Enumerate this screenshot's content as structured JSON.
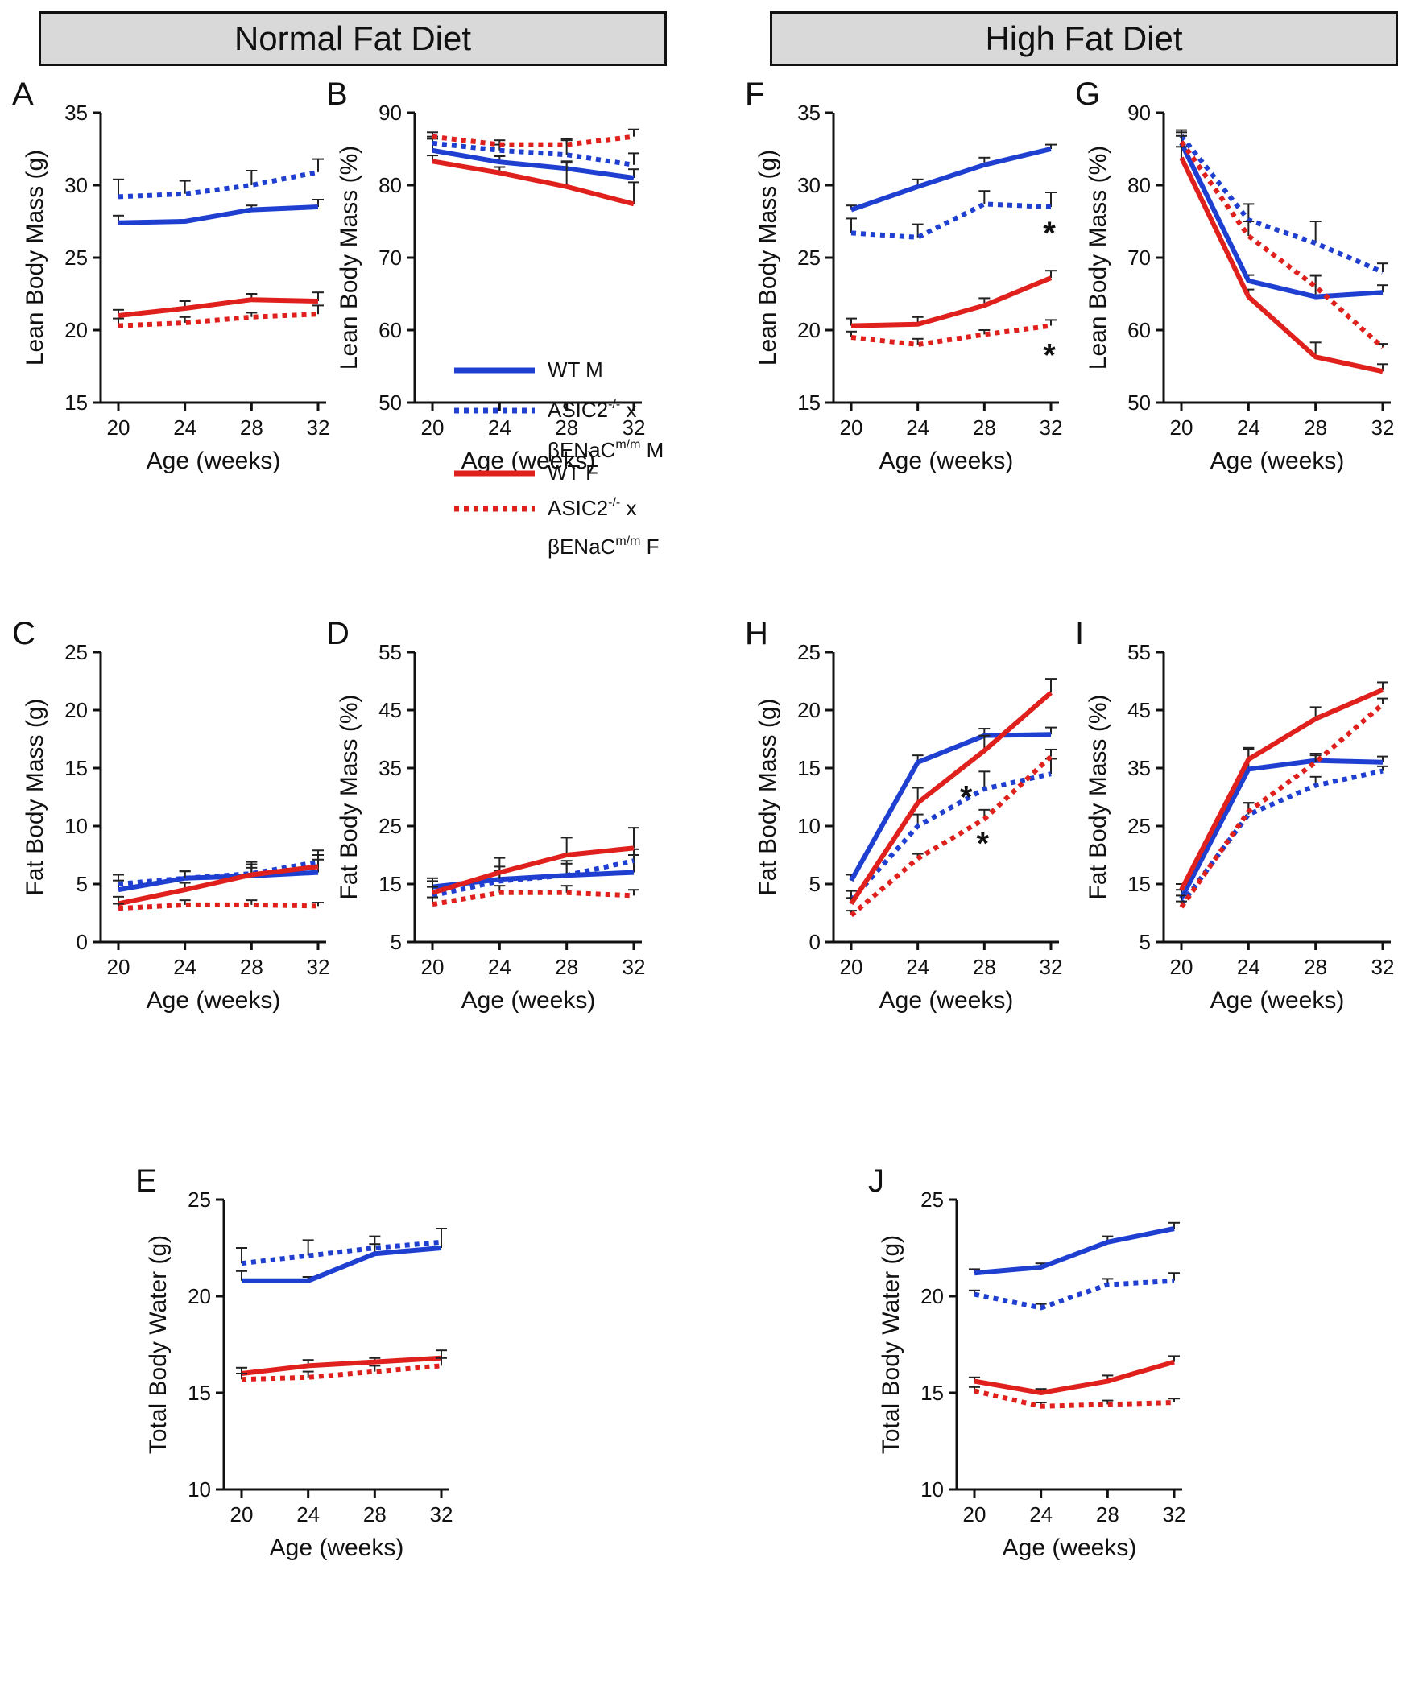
{
  "headers": {
    "normal": "Normal Fat Diet",
    "high": "High Fat Diet"
  },
  "colors": {
    "male": "#1f3fd1",
    "female": "#e0201c",
    "axis": "#111111"
  },
  "legend": {
    "wt_m": "WT M",
    "asic_m_line1_base": "ASIC2",
    "asic_m_line1_sup": "-/-",
    "asic_m_line1_tail": " x",
    "asic_m_line2_base": "βENaC",
    "asic_m_line2_sup": "m/m",
    "asic_m_line2_tail": " M",
    "wt_f": "WT F",
    "asic_f_line1_base": "ASIC2",
    "asic_f_line1_sup": "-/-",
    "asic_f_line1_tail": " x",
    "asic_f_line2_base": "βENaC",
    "asic_f_line2_sup": "m/m",
    "asic_f_line2_tail": " F"
  },
  "chart_data": [
    {
      "id": "A",
      "type": "line",
      "title": "",
      "xlabel": "Age (weeks)",
      "ylabel": "Lean Body Mass (g)",
      "x": [
        20,
        24,
        28,
        32
      ],
      "xticks": [
        "20",
        "24",
        "28",
        "32"
      ],
      "ylim": [
        15,
        35
      ],
      "yticks": [
        "15",
        "20",
        "25",
        "30",
        "35"
      ],
      "annotations": [],
      "series": [
        {
          "name": "WT M",
          "style": "solid",
          "color": "male",
          "values": [
            27.4,
            27.5,
            28.3,
            28.5
          ],
          "errors": [
            0.5,
            0.1,
            0.3,
            0.5
          ]
        },
        {
          "name": "ASIC2-/- x βENaCm/m M",
          "style": "dotted",
          "color": "male",
          "values": [
            29.2,
            29.4,
            30.0,
            30.9
          ],
          "errors": [
            1.2,
            0.9,
            1.0,
            0.9
          ]
        },
        {
          "name": "WT F",
          "style": "solid",
          "color": "female",
          "values": [
            21.0,
            21.5,
            22.1,
            22.0
          ],
          "errors": [
            0.4,
            0.5,
            0.4,
            0.6
          ]
        },
        {
          "name": "ASIC2-/- x βENaCm/m F",
          "style": "dotted",
          "color": "female",
          "values": [
            20.3,
            20.5,
            20.9,
            21.1
          ],
          "errors": [
            0.5,
            0.4,
            0.3,
            0.6
          ]
        }
      ]
    },
    {
      "id": "B",
      "type": "line",
      "title": "",
      "xlabel": "Age (weeks)",
      "ylabel": "Lean Body Mass (%)",
      "x": [
        20,
        24,
        28,
        32
      ],
      "xticks": [
        "20",
        "24",
        "28",
        "32"
      ],
      "ylim": [
        50,
        90
      ],
      "yticks": [
        "50",
        "60",
        "70",
        "80",
        "90"
      ],
      "annotations": [],
      "series": [
        {
          "name": "WT M",
          "style": "solid",
          "color": "male",
          "values": [
            84.8,
            83.2,
            82.3,
            81.0
          ],
          "errors": [
            1.6,
            0.8,
            0.8,
            1.2
          ]
        },
        {
          "name": "ASIC2-/- x βENaCm/m M",
          "style": "dotted",
          "color": "male",
          "values": [
            85.8,
            84.8,
            84.2,
            82.8
          ],
          "errors": [
            0.9,
            0.8,
            2.0,
            1.6
          ]
        },
        {
          "name": "WT F",
          "style": "solid",
          "color": "female",
          "values": [
            83.3,
            81.7,
            79.8,
            77.4
          ],
          "errors": [
            0.8,
            0.8,
            3.5,
            3.0
          ]
        },
        {
          "name": "ASIC2-/- x βENaCm/m F",
          "style": "dotted",
          "color": "female",
          "values": [
            86.7,
            85.6,
            85.6,
            86.7
          ],
          "errors": [
            0.6,
            0.6,
            0.8,
            1.0
          ]
        }
      ]
    },
    {
      "id": "C",
      "type": "line",
      "title": "",
      "xlabel": "Age (weeks)",
      "ylabel": "Fat Body Mass (g)",
      "x": [
        20,
        24,
        28,
        32
      ],
      "xticks": [
        "20",
        "24",
        "28",
        "32"
      ],
      "ylim": [
        0,
        25
      ],
      "yticks": [
        "0",
        "5",
        "10",
        "15",
        "20",
        "25"
      ],
      "annotations": [],
      "series": [
        {
          "name": "WT M",
          "style": "solid",
          "color": "male",
          "values": [
            4.5,
            5.5,
            5.7,
            6.0
          ],
          "errors": [
            0.8,
            0.6,
            1.0,
            1.5
          ]
        },
        {
          "name": "ASIC2-/- x βENaCm/m M",
          "style": "dotted",
          "color": "male",
          "values": [
            5.0,
            5.5,
            5.9,
            6.9
          ],
          "errors": [
            0.8,
            0.6,
            1.0,
            1.0
          ]
        },
        {
          "name": "WT F",
          "style": "solid",
          "color": "female",
          "values": [
            3.3,
            4.5,
            5.8,
            6.5
          ],
          "errors": [
            0.6,
            0.6,
            0.6,
            0.6
          ]
        },
        {
          "name": "ASIC2-/- x βENaCm/m F",
          "style": "dotted",
          "color": "female",
          "values": [
            2.9,
            3.2,
            3.2,
            3.1
          ],
          "errors": [
            0.4,
            0.4,
            0.4,
            0.3
          ]
        }
      ]
    },
    {
      "id": "D",
      "type": "line",
      "title": "",
      "xlabel": "Age (weeks)",
      "ylabel": "Fat Body Mass (%)",
      "x": [
        20,
        24,
        28,
        32
      ],
      "xticks": [
        "20",
        "24",
        "28",
        "32"
      ],
      "ylim": [
        5,
        55
      ],
      "yticks": [
        "5",
        "15",
        "25",
        "35",
        "45",
        "55"
      ],
      "annotations": [],
      "series": [
        {
          "name": "WT M",
          "style": "solid",
          "color": "male",
          "values": [
            14.5,
            15.8,
            16.5,
            17.0
          ],
          "errors": [
            1.5,
            1.5,
            2.0,
            3.0
          ]
        },
        {
          "name": "ASIC2-/- x βENaCm/m M",
          "style": "dotted",
          "color": "male",
          "values": [
            13.0,
            15.5,
            16.5,
            19.0
          ],
          "errors": [
            1.5,
            2.5,
            2.5,
            2.0
          ]
        },
        {
          "name": "WT F",
          "style": "solid",
          "color": "female",
          "values": [
            13.5,
            17.0,
            20.0,
            21.2
          ],
          "errors": [
            2.0,
            2.5,
            3.0,
            3.5
          ]
        },
        {
          "name": "ASIC2-/- x βENaCm/m F",
          "style": "dotted",
          "color": "female",
          "values": [
            11.5,
            13.5,
            13.5,
            13.0
          ],
          "errors": [
            1.2,
            1.2,
            1.2,
            1.0
          ]
        }
      ]
    },
    {
      "id": "E",
      "type": "line",
      "title": "",
      "xlabel": "Age (weeks)",
      "ylabel": "Total Body Water (g)",
      "x": [
        20,
        24,
        28,
        32
      ],
      "xticks": [
        "20",
        "24",
        "28",
        "32"
      ],
      "ylim": [
        10,
        25
      ],
      "yticks": [
        "10",
        "15",
        "20",
        "25"
      ],
      "annotations": [],
      "series": [
        {
          "name": "WT M",
          "style": "solid",
          "color": "male",
          "values": [
            20.8,
            20.8,
            22.2,
            22.5
          ],
          "errors": [
            0.5,
            0.2,
            0.5,
            1.0
          ]
        },
        {
          "name": "ASIC2-/- x βENaCm/m M",
          "style": "dotted",
          "color": "male",
          "values": [
            21.7,
            22.1,
            22.5,
            22.8
          ],
          "errors": [
            0.8,
            0.8,
            0.6,
            0.7
          ]
        },
        {
          "name": "WT F",
          "style": "solid",
          "color": "female",
          "values": [
            16.0,
            16.4,
            16.6,
            16.8
          ],
          "errors": [
            0.3,
            0.3,
            0.2,
            0.4
          ]
        },
        {
          "name": "ASIC2-/- x βENaCm/m F",
          "style": "dotted",
          "color": "female",
          "values": [
            15.7,
            15.8,
            16.1,
            16.4
          ],
          "errors": [
            0.3,
            0.3,
            0.3,
            0.4
          ]
        }
      ]
    },
    {
      "id": "F",
      "type": "line",
      "title": "",
      "xlabel": "Age (weeks)",
      "ylabel": "Lean Body Mass (g)",
      "x": [
        20,
        24,
        28,
        32
      ],
      "xticks": [
        "20",
        "24",
        "28",
        "32"
      ],
      "ylim": [
        15,
        35
      ],
      "yticks": [
        "15",
        "20",
        "25",
        "30",
        "35"
      ],
      "annotations": [
        {
          "label": "*",
          "x": 32,
          "y": 26.6
        },
        {
          "label": "*",
          "x": 32,
          "y": 18.2
        }
      ],
      "series": [
        {
          "name": "WT M",
          "style": "solid",
          "color": "male",
          "values": [
            28.3,
            29.9,
            31.4,
            32.5
          ],
          "errors": [
            0.3,
            0.5,
            0.5,
            0.3
          ]
        },
        {
          "name": "ASIC2-/- x βENaCm/m M",
          "style": "dotted",
          "color": "male",
          "values": [
            26.7,
            26.4,
            28.7,
            28.5
          ],
          "errors": [
            1.0,
            0.9,
            0.9,
            1.0
          ]
        },
        {
          "name": "WT F",
          "style": "solid",
          "color": "female",
          "values": [
            20.3,
            20.4,
            21.7,
            23.6
          ],
          "errors": [
            0.5,
            0.5,
            0.5,
            0.5
          ]
        },
        {
          "name": "ASIC2-/- x βENaCm/m F",
          "style": "dotted",
          "color": "female",
          "values": [
            19.5,
            19.0,
            19.7,
            20.3
          ],
          "errors": [
            0.4,
            0.4,
            0.3,
            0.4
          ]
        }
      ]
    },
    {
      "id": "G",
      "type": "line",
      "title": "",
      "xlabel": "Age (weeks)",
      "ylabel": "Lean Body Mass (%)",
      "x": [
        20,
        24,
        28,
        32
      ],
      "xticks": [
        "20",
        "24",
        "28",
        "32"
      ],
      "ylim": [
        50,
        90
      ],
      "yticks": [
        "50",
        "60",
        "70",
        "80",
        "90"
      ],
      "annotations": [],
      "series": [
        {
          "name": "WT M",
          "style": "solid",
          "color": "male",
          "values": [
            85.8,
            66.8,
            64.6,
            65.2
          ],
          "errors": [
            1.5,
            0.8,
            3.0,
            1.0
          ]
        },
        {
          "name": "ASIC2-/- x βENaCm/m M",
          "style": "dotted",
          "color": "male",
          "values": [
            86.8,
            75.2,
            72.0,
            68.0
          ],
          "errors": [
            0.8,
            2.2,
            3.0,
            1.2
          ]
        },
        {
          "name": "WT F",
          "style": "solid",
          "color": "female",
          "values": [
            83.8,
            64.6,
            56.3,
            54.3
          ],
          "errors": [
            1.5,
            1.0,
            2.0,
            1.0
          ]
        },
        {
          "name": "ASIC2-/- x βENaCm/m F",
          "style": "dotted",
          "color": "female",
          "values": [
            86.0,
            73.0,
            66.0,
            57.6
          ],
          "errors": [
            0.8,
            2.0,
            1.5,
            0.5
          ]
        }
      ]
    },
    {
      "id": "H",
      "type": "line",
      "title": "",
      "xlabel": "Age (weeks)",
      "ylabel": "Fat Body Mass (g)",
      "x": [
        20,
        24,
        28,
        32
      ],
      "xticks": [
        "20",
        "24",
        "28",
        "32"
      ],
      "ylim": [
        0,
        25
      ],
      "yticks": [
        "0",
        "5",
        "10",
        "15",
        "20",
        "25"
      ],
      "annotations": [
        {
          "label": "*",
          "x": 27,
          "y": 12.4
        },
        {
          "label": "*",
          "x": 28,
          "y": 8.4
        }
      ],
      "series": [
        {
          "name": "WT M",
          "style": "solid",
          "color": "male",
          "values": [
            5.3,
            15.5,
            17.8,
            17.9
          ],
          "errors": [
            0.5,
            0.6,
            0.6,
            0.6
          ]
        },
        {
          "name": "ASIC2-/- x βENaCm/m M",
          "style": "dotted",
          "color": "male",
          "values": [
            3.6,
            10.0,
            13.2,
            14.5
          ],
          "errors": [
            0.8,
            1.0,
            1.5,
            1.3
          ]
        },
        {
          "name": "WT F",
          "style": "solid",
          "color": "female",
          "values": [
            3.3,
            12.0,
            16.5,
            21.5
          ],
          "errors": [
            0.5,
            1.3,
            1.3,
            1.2
          ]
        },
        {
          "name": "ASIC2-/- x βENaCm/m F",
          "style": "dotted",
          "color": "female",
          "values": [
            2.3,
            7.2,
            10.6,
            16.0
          ],
          "errors": [
            0.4,
            0.4,
            0.8,
            0.6
          ]
        }
      ]
    },
    {
      "id": "I",
      "type": "line",
      "title": "",
      "xlabel": "Age (weeks)",
      "ylabel": "Fat Body Mass (%)",
      "x": [
        20,
        24,
        28,
        32
      ],
      "xticks": [
        "20",
        "24",
        "28",
        "32"
      ],
      "ylim": [
        5,
        55
      ],
      "yticks": [
        "5",
        "15",
        "25",
        "35",
        "45",
        "55"
      ],
      "annotations": [],
      "series": [
        {
          "name": "WT M",
          "style": "solid",
          "color": "male",
          "values": [
            12.5,
            34.8,
            36.3,
            36.0
          ],
          "errors": [
            1.5,
            3.5,
            1.2,
            1.0
          ]
        },
        {
          "name": "ASIC2-/- x βENaCm/m M",
          "style": "dotted",
          "color": "male",
          "values": [
            11.5,
            27.0,
            32.0,
            34.5
          ],
          "errors": [
            1.5,
            2.0,
            1.5,
            0.8
          ]
        },
        {
          "name": "WT F",
          "style": "solid",
          "color": "female",
          "values": [
            14.0,
            36.5,
            43.5,
            48.5
          ],
          "errors": [
            1.0,
            2.0,
            2.0,
            1.3
          ]
        },
        {
          "name": "ASIC2-/- x βENaCm/m F",
          "style": "dotted",
          "color": "female",
          "values": [
            11.0,
            27.5,
            36.0,
            46.0
          ],
          "errors": [
            1.0,
            1.5,
            1.2,
            1.0
          ]
        }
      ]
    },
    {
      "id": "J",
      "type": "line",
      "title": "",
      "xlabel": "Age (weeks)",
      "ylabel": "Total Body Water (g)",
      "x": [
        20,
        24,
        28,
        32
      ],
      "xticks": [
        "20",
        "24",
        "28",
        "32"
      ],
      "ylim": [
        10,
        25
      ],
      "yticks": [
        "10",
        "15",
        "20",
        "25"
      ],
      "annotations": [],
      "series": [
        {
          "name": "WT M",
          "style": "solid",
          "color": "male",
          "values": [
            21.2,
            21.5,
            22.8,
            23.5
          ],
          "errors": [
            0.2,
            0.2,
            0.3,
            0.3
          ]
        },
        {
          "name": "ASIC2-/- x βENaCm/m M",
          "style": "dotted",
          "color": "male",
          "values": [
            20.1,
            19.4,
            20.6,
            20.8
          ],
          "errors": [
            0.2,
            0.2,
            0.3,
            0.4
          ]
        },
        {
          "name": "WT F",
          "style": "solid",
          "color": "female",
          "values": [
            15.6,
            15.0,
            15.6,
            16.6
          ],
          "errors": [
            0.2,
            0.2,
            0.3,
            0.3
          ]
        },
        {
          "name": "ASIC2-/- x βENaCm/m F",
          "style": "dotted",
          "color": "female",
          "values": [
            15.1,
            14.3,
            14.4,
            14.5
          ],
          "errors": [
            0.2,
            0.2,
            0.2,
            0.2
          ]
        }
      ]
    }
  ]
}
